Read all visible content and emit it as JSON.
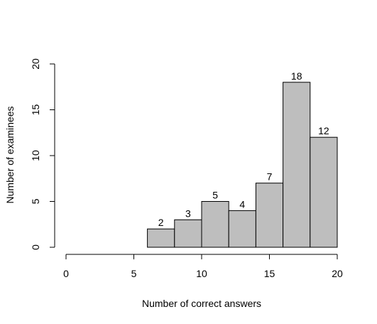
{
  "chart_data": {
    "type": "bar",
    "title": "",
    "xlabel": "Number of correct answers",
    "ylabel": "Number of examinees",
    "bins": [
      {
        "start": 6,
        "end": 8,
        "count": 2
      },
      {
        "start": 8,
        "end": 10,
        "count": 3
      },
      {
        "start": 10,
        "end": 12,
        "count": 5
      },
      {
        "start": 12,
        "end": 14,
        "count": 4
      },
      {
        "start": 14,
        "end": 16,
        "count": 7
      },
      {
        "start": 16,
        "end": 18,
        "count": 18
      },
      {
        "start": 18,
        "end": 20,
        "count": 12
      }
    ],
    "xlim": [
      0,
      20
    ],
    "ylim": [
      0,
      20
    ],
    "xticks": [
      0,
      5,
      10,
      15,
      20
    ],
    "yticks": [
      0,
      5,
      10,
      15,
      20
    ],
    "bar_fill": "#bebebe",
    "bar_stroke": "#000000",
    "grid": false,
    "legend": "none"
  }
}
